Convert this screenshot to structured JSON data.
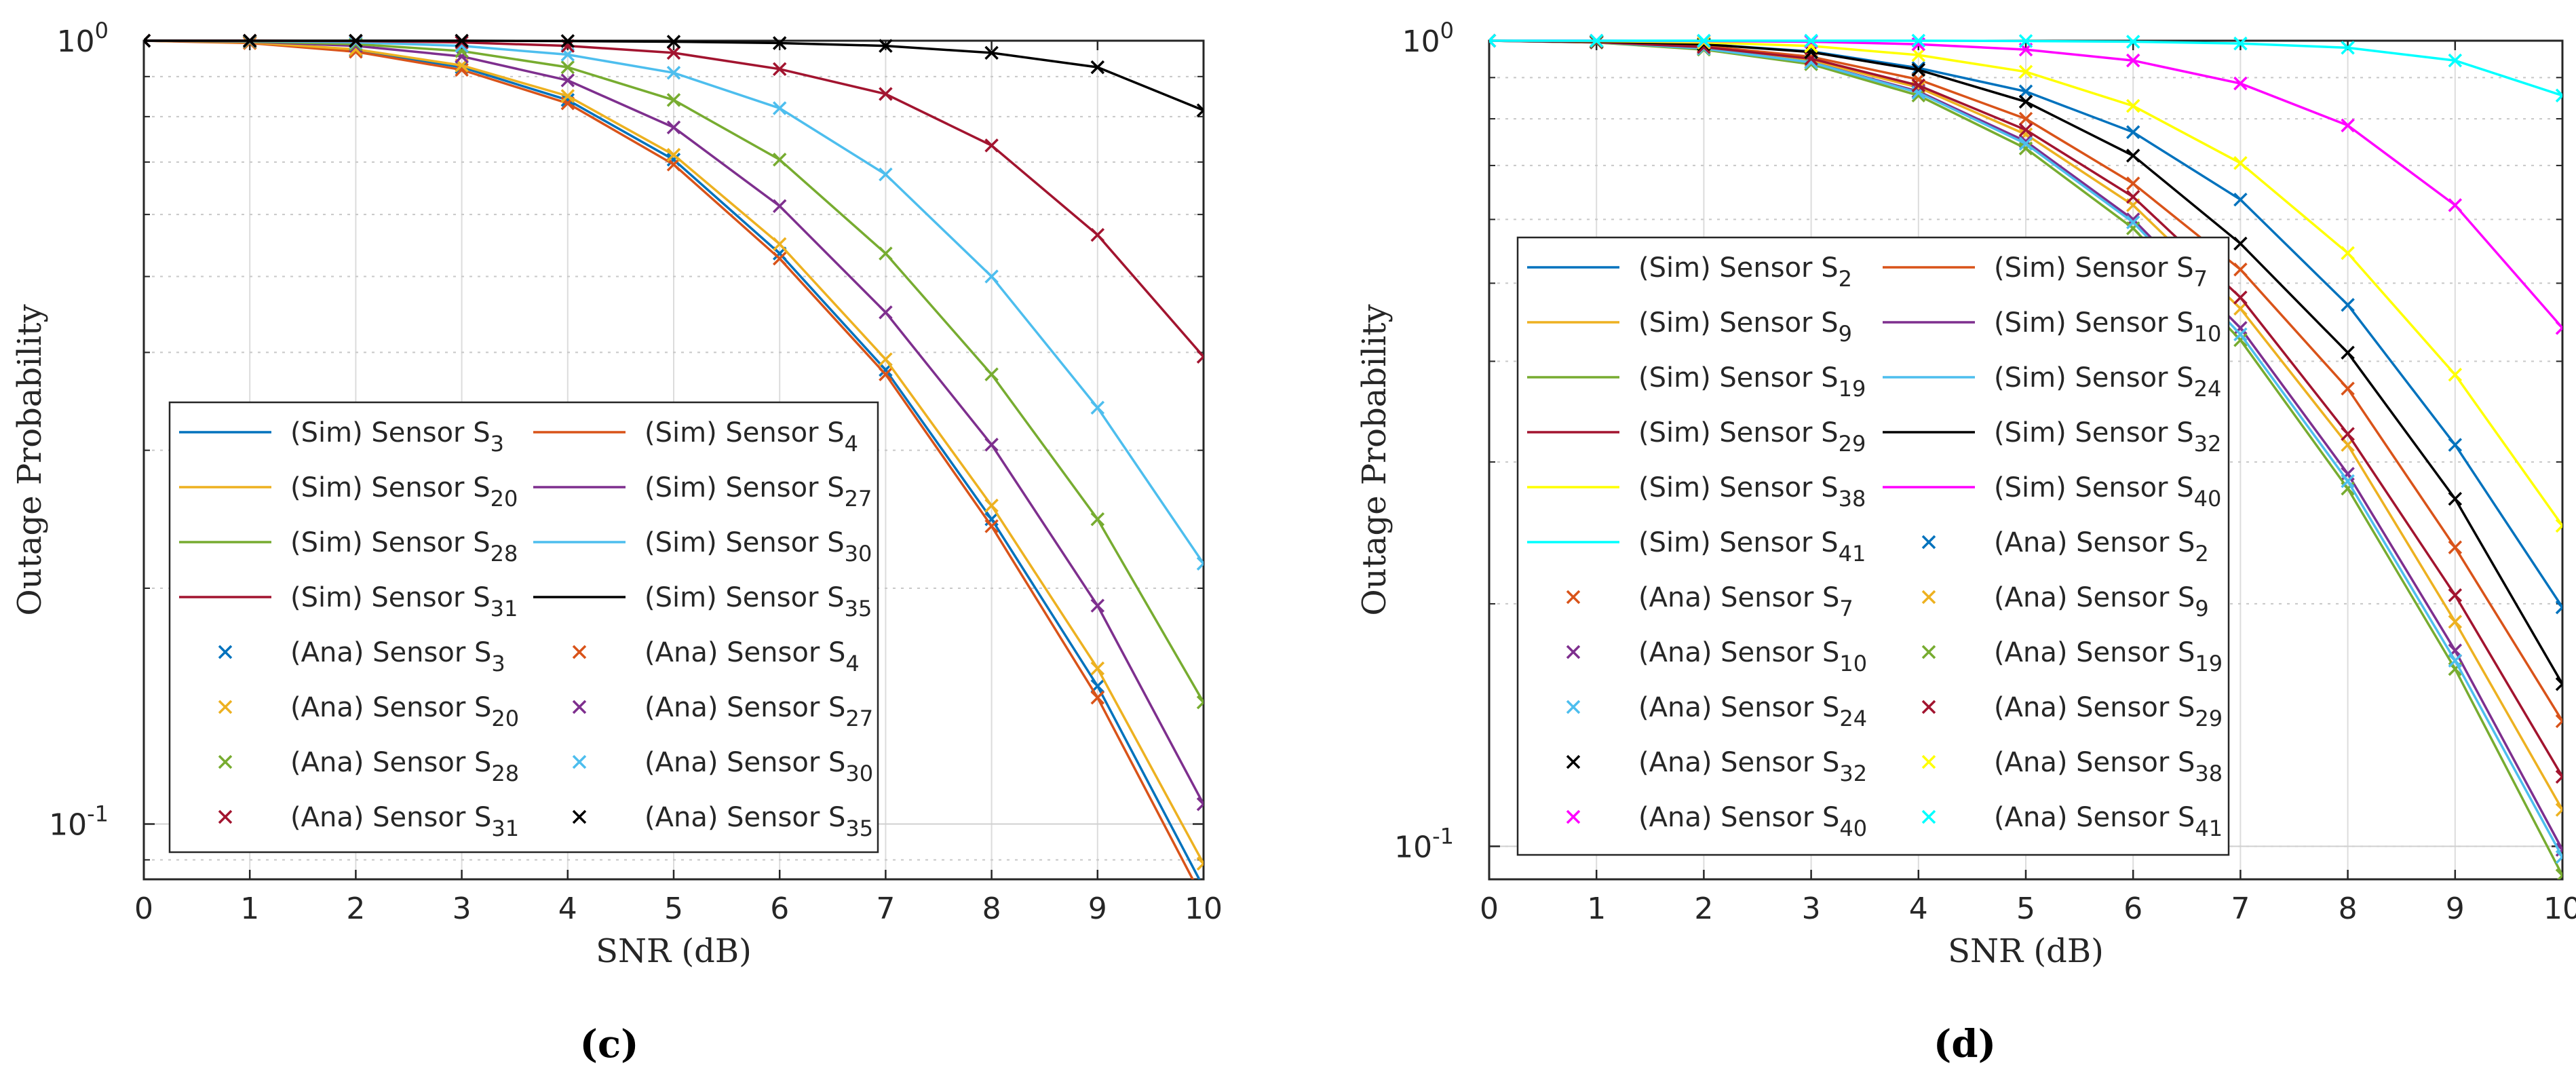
{
  "colors": {
    "S2": "#0072BD",
    "S3": "#0072BD",
    "S4": "#D95319",
    "S7": "#D95319",
    "S9": "#EDB120",
    "S20": "#EDB120",
    "S10": "#7E2F8E",
    "S27": "#7E2F8E",
    "S19": "#77AC30",
    "S28": "#77AC30",
    "S24": "#4DBEEE",
    "S30": "#4DBEEE",
    "S29": "#A2142F",
    "S31": "#A2142F",
    "S32": "#000000",
    "S35": "#000000",
    "S38": "#FFFF00",
    "S40": "#FF00FF",
    "S41": "#00FFFF"
  },
  "chart_data": [
    {
      "type": "line",
      "panel_label": "(c)",
      "title": "",
      "xlabel": "SNR (dB)",
      "ylabel": "Outage Probability",
      "yscale": "log",
      "xlim": [
        0,
        10
      ],
      "ylim": [
        0.085,
        1
      ],
      "grid": true,
      "x": [
        0,
        1,
        2,
        3,
        4,
        5,
        6,
        7,
        8,
        9,
        10
      ],
      "x_ticks": [
        "0",
        "1",
        "2",
        "3",
        "4",
        "5",
        "6",
        "7",
        "8",
        "9",
        "10"
      ],
      "y_tick_values": [
        0.1,
        1
      ],
      "y_tick_bases": [
        "10",
        "10"
      ],
      "y_tick_exps": [
        "-1",
        "0"
      ],
      "legend_position": "lower-left",
      "legend_prefix_sim": "(Sim) Sensor S",
      "legend_prefix_ana": "(Ana) Sensor S",
      "series": [
        {
          "name": "Sensor S3",
          "sub": "3",
          "color_key": "S3",
          "values": [
            1.0,
            0.995,
            0.972,
            0.925,
            0.84,
            0.705,
            0.535,
            0.38,
            0.245,
            0.15,
            0.083
          ]
        },
        {
          "name": "Sensor S4",
          "sub": "4",
          "color_key": "S4",
          "values": [
            1.0,
            0.993,
            0.968,
            0.918,
            0.832,
            0.695,
            0.527,
            0.375,
            0.24,
            0.145,
            0.08
          ]
        },
        {
          "name": "Sensor S20",
          "sub": "20",
          "color_key": "S20",
          "values": [
            1.0,
            0.995,
            0.975,
            0.93,
            0.85,
            0.715,
            0.55,
            0.392,
            0.255,
            0.158,
            0.089
          ]
        },
        {
          "name": "Sensor S27",
          "sub": "27",
          "color_key": "S27",
          "values": [
            1.0,
            0.997,
            0.985,
            0.955,
            0.89,
            0.775,
            0.615,
            0.45,
            0.305,
            0.19,
            0.106
          ]
        },
        {
          "name": "Sensor S28",
          "sub": "28",
          "color_key": "S28",
          "values": [
            1.0,
            0.998,
            0.99,
            0.97,
            0.925,
            0.84,
            0.705,
            0.535,
            0.375,
            0.245,
            0.143
          ]
        },
        {
          "name": "Sensor S30",
          "sub": "30",
          "color_key": "S30",
          "values": [
            1.0,
            0.999,
            0.995,
            0.985,
            0.96,
            0.91,
            0.82,
            0.675,
            0.5,
            0.34,
            0.215
          ]
        },
        {
          "name": "Sensor S31",
          "sub": "31",
          "color_key": "S31",
          "values": [
            1.0,
            1.0,
            0.999,
            0.995,
            0.985,
            0.965,
            0.92,
            0.855,
            0.735,
            0.565,
            0.395
          ]
        },
        {
          "name": "Sensor S35",
          "sub": "35",
          "color_key": "S35",
          "values": [
            1.0,
            1.0,
            1.0,
            1.0,
            0.999,
            0.997,
            0.993,
            0.985,
            0.965,
            0.925,
            0.815
          ]
        }
      ]
    },
    {
      "type": "line",
      "panel_label": "(d)",
      "title": "",
      "xlabel": "SNR (dB)",
      "ylabel": "Outage Probability",
      "yscale": "log",
      "xlim": [
        0,
        10
      ],
      "ylim": [
        0.091,
        1
      ],
      "grid": true,
      "x": [
        0,
        1,
        2,
        3,
        4,
        5,
        6,
        7,
        8,
        9,
        10
      ],
      "x_ticks": [
        "0",
        "1",
        "2",
        "3",
        "4",
        "5",
        "6",
        "7",
        "8",
        "9",
        "10"
      ],
      "y_tick_values": [
        0.1,
        1
      ],
      "y_tick_bases": [
        "10",
        "10"
      ],
      "y_tick_exps": [
        "-1",
        "0"
      ],
      "legend_position": "lower-left",
      "legend_prefix_sim": "(Sim) Sensor S",
      "legend_prefix_ana": "(Ana) Sensor S",
      "series": [
        {
          "name": "Sensor S2",
          "sub": "2",
          "color_key": "S2",
          "values": [
            1.0,
            0.998,
            0.99,
            0.97,
            0.925,
            0.865,
            0.77,
            0.635,
            0.47,
            0.315,
            0.198
          ]
        },
        {
          "name": "Sensor S7",
          "sub": "7",
          "color_key": "S7",
          "values": [
            1.0,
            0.997,
            0.985,
            0.955,
            0.895,
            0.8,
            0.665,
            0.52,
            0.37,
            0.235,
            0.143
          ]
        },
        {
          "name": "Sensor S9",
          "sub": "9",
          "color_key": "S9",
          "values": [
            1.0,
            0.996,
            0.98,
            0.945,
            0.875,
            0.765,
            0.625,
            0.465,
            0.315,
            0.19,
            0.111
          ]
        },
        {
          "name": "Sensor S10",
          "sub": "10",
          "color_key": "S10",
          "values": [
            1.0,
            0.995,
            0.978,
            0.94,
            0.865,
            0.75,
            0.6,
            0.44,
            0.29,
            0.175,
            0.099
          ]
        },
        {
          "name": "Sensor S19",
          "sub": "19",
          "color_key": "S19",
          "values": [
            1.0,
            0.995,
            0.975,
            0.935,
            0.855,
            0.735,
            0.585,
            0.425,
            0.278,
            0.166,
            0.092
          ]
        },
        {
          "name": "Sensor S24",
          "sub": "24",
          "color_key": "S24",
          "values": [
            1.0,
            0.996,
            0.978,
            0.94,
            0.862,
            0.745,
            0.595,
            0.432,
            0.284,
            0.17,
            0.097
          ]
        },
        {
          "name": "Sensor S29",
          "sub": "29",
          "color_key": "S29",
          "values": [
            1.0,
            0.996,
            0.982,
            0.95,
            0.88,
            0.775,
            0.64,
            0.48,
            0.325,
            0.205,
            0.122
          ]
        },
        {
          "name": "Sensor S32",
          "sub": "32",
          "color_key": "S32",
          "values": [
            1.0,
            0.998,
            0.99,
            0.968,
            0.92,
            0.84,
            0.72,
            0.56,
            0.41,
            0.27,
            0.159
          ]
        },
        {
          "name": "Sensor S38",
          "sub": "38",
          "color_key": "S38",
          "values": [
            1.0,
            0.999,
            0.995,
            0.985,
            0.96,
            0.915,
            0.83,
            0.705,
            0.545,
            0.385,
            0.25
          ]
        },
        {
          "name": "Sensor S40",
          "sub": "40",
          "color_key": "S40",
          "values": [
            1.0,
            1.0,
            0.999,
            0.997,
            0.99,
            0.975,
            0.945,
            0.885,
            0.785,
            0.625,
            0.44
          ]
        },
        {
          "name": "Sensor S41",
          "sub": "41",
          "color_key": "S41",
          "values": [
            1.0,
            1.0,
            1.0,
            1.0,
            1.0,
            0.999,
            0.997,
            0.992,
            0.98,
            0.945,
            0.855
          ]
        }
      ]
    }
  ]
}
